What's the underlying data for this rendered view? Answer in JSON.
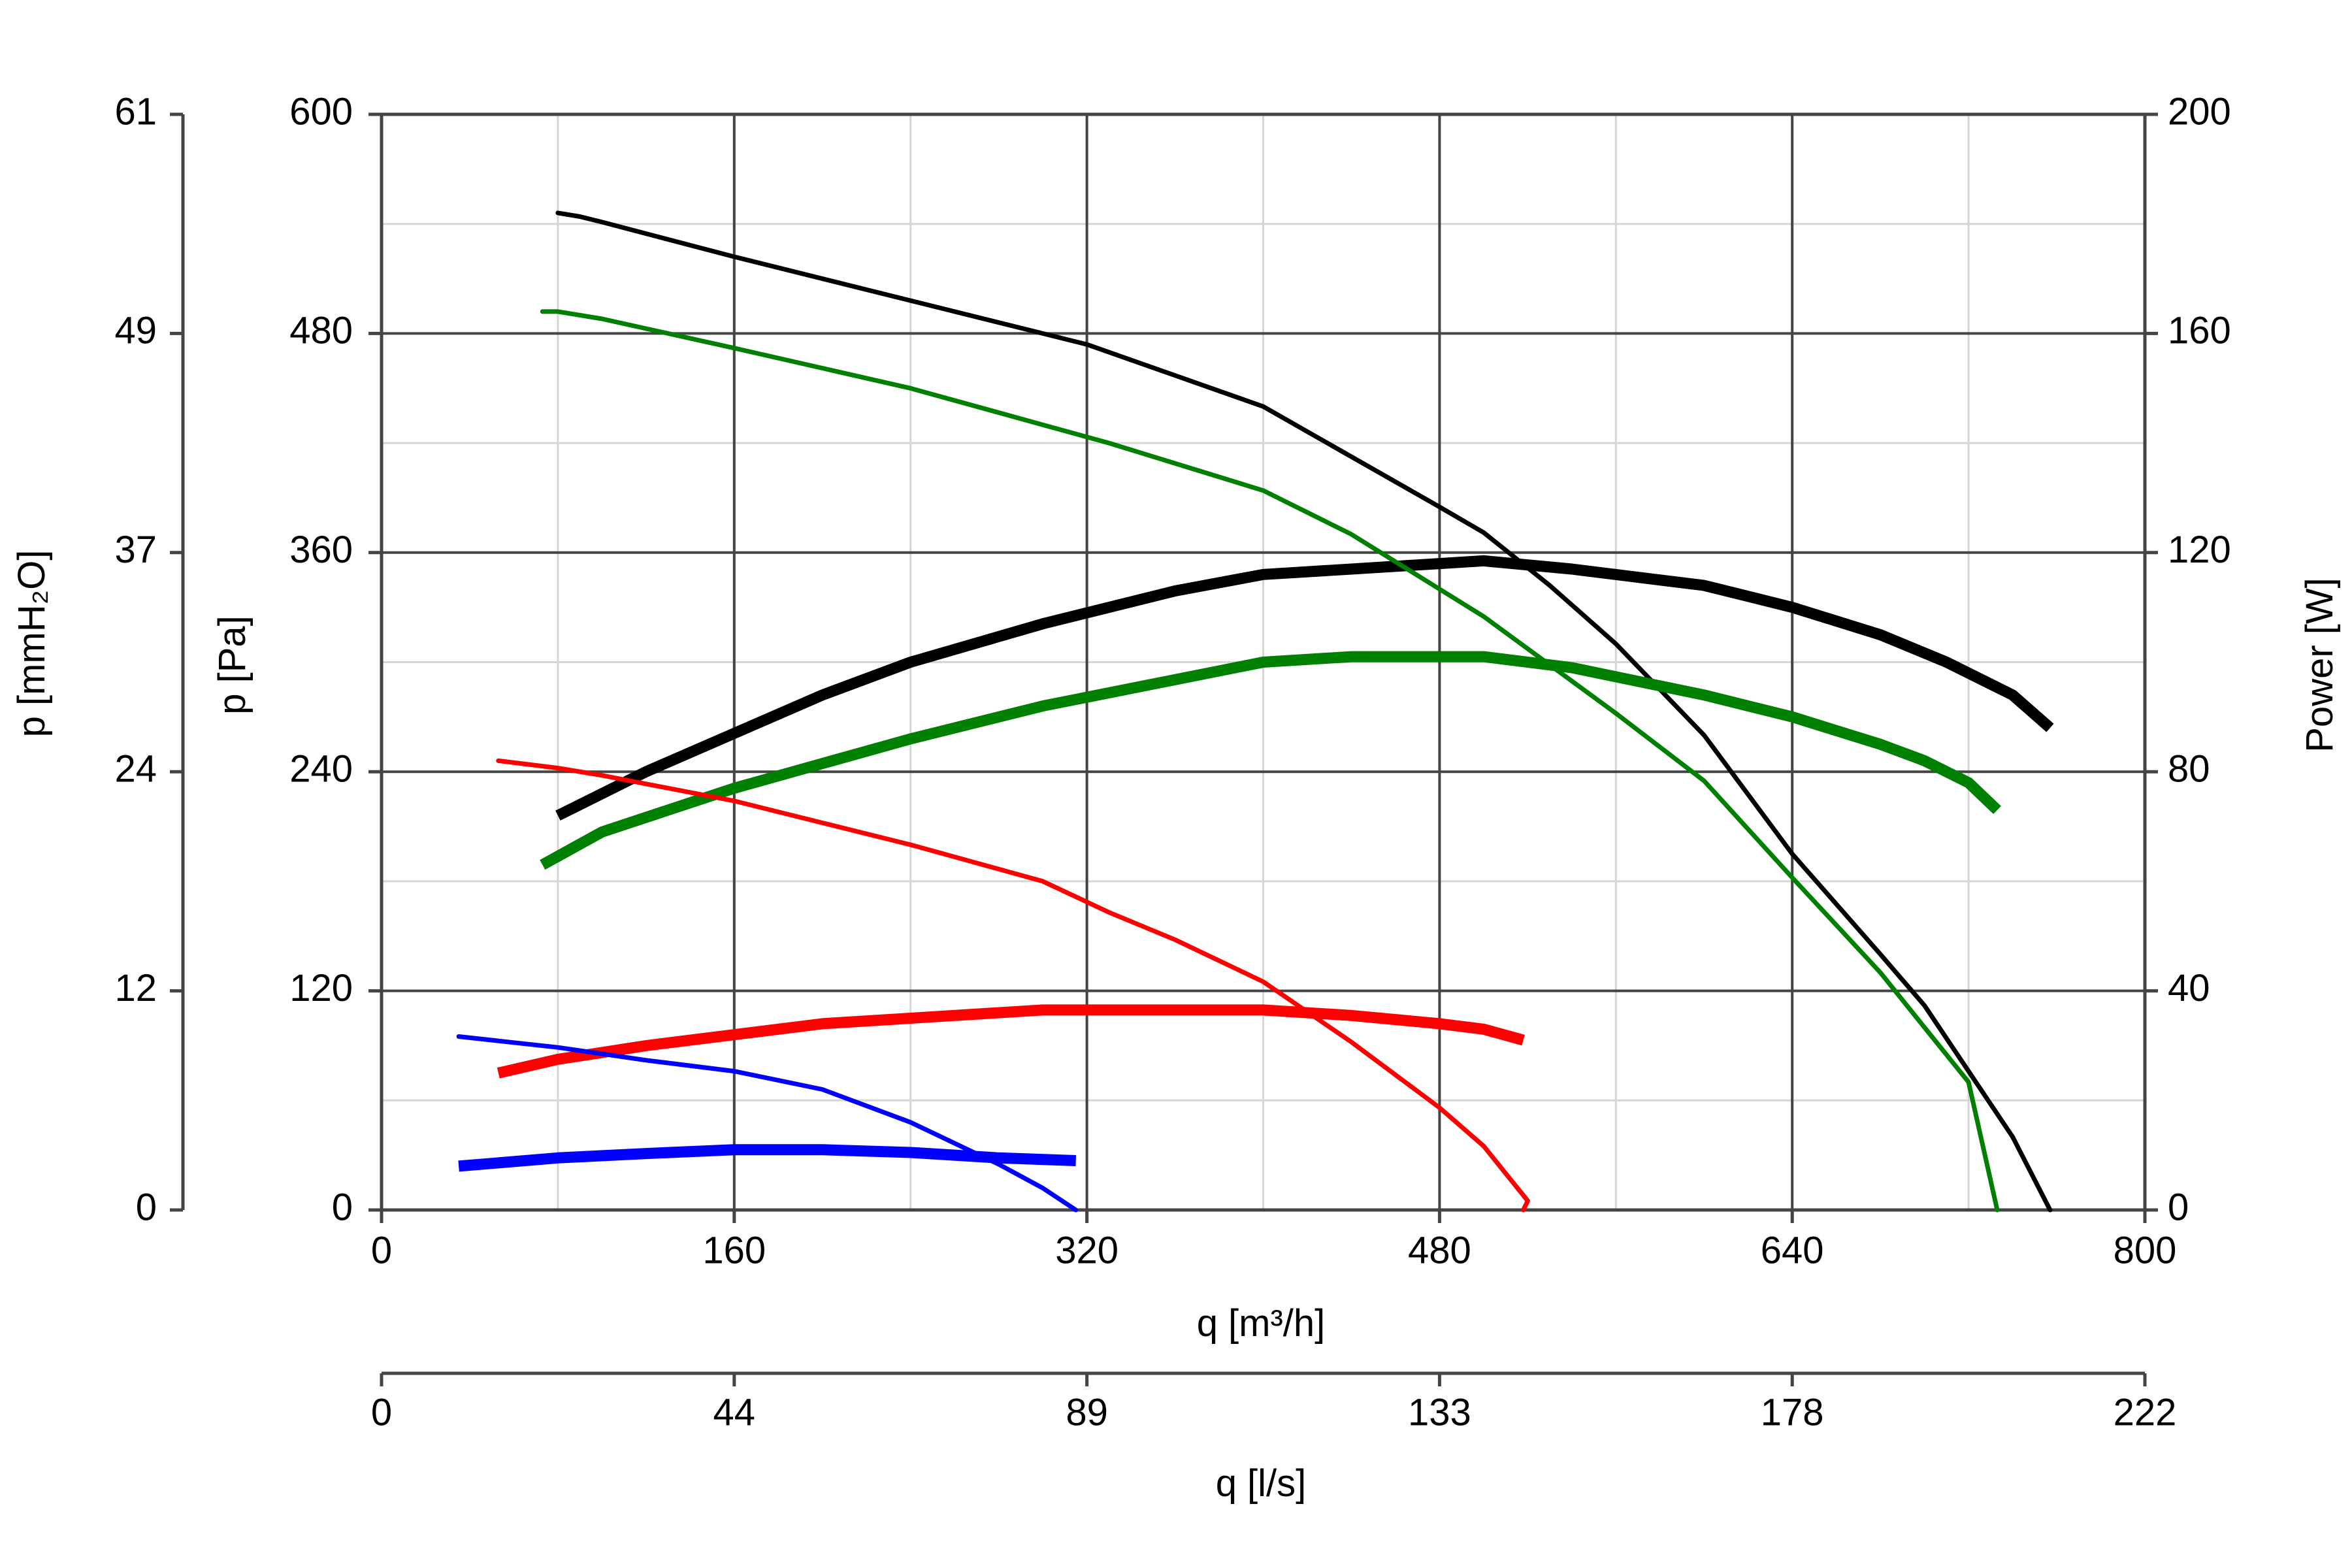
{
  "chart_data": {
    "type": "line",
    "xlabel": "q [m³/h]",
    "xlabel2": "q [l/s]",
    "ylabel_left": "p [Pa]",
    "ylabel_left2": "p [mmH₂O]",
    "ylabel_right": "Power [W]",
    "xlim": [
      0,
      800
    ],
    "ylim_pressure": [
      0,
      600
    ],
    "ylim_power": [
      0,
      200
    ],
    "grid": true,
    "x_ticks": [
      "0",
      "160",
      "320",
      "480",
      "640",
      "800"
    ],
    "x2_ticks": [
      "0",
      "44",
      "89",
      "133",
      "178",
      "222"
    ],
    "y_pa_ticks": [
      "0",
      "120",
      "240",
      "360",
      "480",
      "600"
    ],
    "y_mmh2o_ticks": [
      "0",
      "12",
      "24",
      "37",
      "49",
      "61"
    ],
    "y_power_ticks": [
      "0",
      "40",
      "80",
      "120",
      "160",
      "200"
    ],
    "series": [
      {
        "color": "#000000",
        "pressure": [
          [
            80,
            546
          ],
          [
            90,
            544
          ],
          [
            100,
            541
          ],
          [
            160,
            522
          ],
          [
            240,
            498
          ],
          [
            300,
            480
          ],
          [
            320,
            474
          ],
          [
            400,
            440
          ],
          [
            480,
            385
          ],
          [
            500,
            371
          ],
          [
            530,
            342
          ],
          [
            560,
            310
          ],
          [
            600,
            260
          ],
          [
            640,
            195
          ],
          [
            680,
            140
          ],
          [
            700,
            112
          ],
          [
            740,
            40
          ],
          [
            757,
            0
          ]
        ],
        "power": [
          [
            80,
            72
          ],
          [
            120,
            80
          ],
          [
            160,
            87
          ],
          [
            200,
            94
          ],
          [
            240,
            100
          ],
          [
            300,
            107
          ],
          [
            360,
            113
          ],
          [
            400,
            116
          ],
          [
            440,
            117
          ],
          [
            480,
            118
          ],
          [
            500,
            118.5
          ],
          [
            540,
            117
          ],
          [
            600,
            114
          ],
          [
            640,
            110
          ],
          [
            680,
            105
          ],
          [
            710,
            100
          ],
          [
            740,
            94
          ],
          [
            757,
            88
          ]
        ]
      },
      {
        "color": "#008000",
        "pressure": [
          [
            73,
            492
          ],
          [
            80,
            492
          ],
          [
            100,
            488
          ],
          [
            160,
            472
          ],
          [
            240,
            450
          ],
          [
            300,
            430
          ],
          [
            330,
            420
          ],
          [
            400,
            394
          ],
          [
            440,
            370
          ],
          [
            480,
            340
          ],
          [
            500,
            325
          ],
          [
            560,
            272
          ],
          [
            600,
            235
          ],
          [
            640,
            182
          ],
          [
            680,
            130
          ],
          [
            700,
            100
          ],
          [
            720,
            70
          ],
          [
            733,
            0
          ]
        ],
        "power": [
          [
            73,
            63
          ],
          [
            100,
            69
          ],
          [
            160,
            77
          ],
          [
            240,
            86
          ],
          [
            300,
            92
          ],
          [
            400,
            100
          ],
          [
            440,
            101
          ],
          [
            500,
            101
          ],
          [
            540,
            99
          ],
          [
            600,
            94
          ],
          [
            640,
            90
          ],
          [
            680,
            85
          ],
          [
            700,
            82
          ],
          [
            720,
            78
          ],
          [
            733,
            73
          ]
        ]
      },
      {
        "color": "#ff0000",
        "pressure": [
          [
            53,
            246
          ],
          [
            80,
            242
          ],
          [
            100,
            238
          ],
          [
            160,
            224
          ],
          [
            200,
            212
          ],
          [
            240,
            200
          ],
          [
            300,
            180
          ],
          [
            330,
            163
          ],
          [
            360,
            148
          ],
          [
            400,
            125
          ],
          [
            440,
            92
          ],
          [
            480,
            56
          ],
          [
            500,
            35
          ],
          [
            520,
            5
          ],
          [
            518,
            0
          ]
        ],
        "power": [
          [
            53,
            25
          ],
          [
            80,
            27.5
          ],
          [
            120,
            30
          ],
          [
            160,
            32
          ],
          [
            200,
            34
          ],
          [
            240,
            35
          ],
          [
            300,
            36.5
          ],
          [
            340,
            36.5
          ],
          [
            400,
            36.5
          ],
          [
            440,
            35.5
          ],
          [
            480,
            34
          ],
          [
            500,
            33
          ],
          [
            518,
            31
          ]
        ]
      },
      {
        "color": "#0000ff",
        "pressure": [
          [
            35,
            95
          ],
          [
            80,
            89
          ],
          [
            120,
            82
          ],
          [
            160,
            76
          ],
          [
            200,
            66
          ],
          [
            240,
            48
          ],
          [
            280,
            25
          ],
          [
            300,
            12
          ],
          [
            315,
            0
          ]
        ],
        "power": [
          [
            35,
            8
          ],
          [
            80,
            9.5
          ],
          [
            120,
            10.3
          ],
          [
            160,
            11
          ],
          [
            200,
            11
          ],
          [
            240,
            10.5
          ],
          [
            280,
            9.5
          ],
          [
            315,
            9
          ]
        ]
      }
    ]
  }
}
